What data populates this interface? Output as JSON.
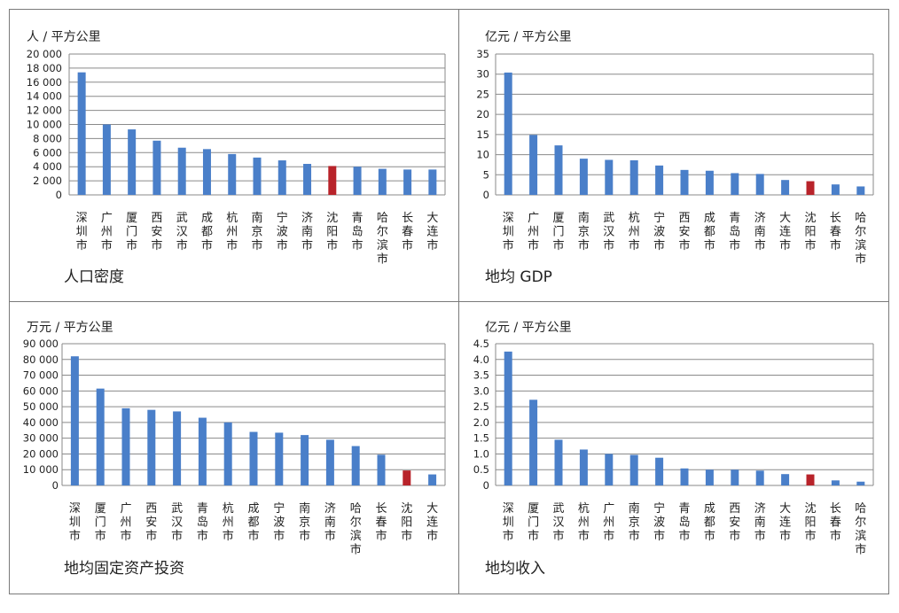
{
  "colors": {
    "bar": "#4a7fc9",
    "highlight": "#b8232a",
    "grid": "#8a8a8a",
    "frame": "#7a7a7a"
  },
  "chart_data": [
    {
      "type": "bar",
      "unit_label": "人 / 平方公里",
      "title": "人口密度",
      "ylim": [
        0,
        20000
      ],
      "yticks": [
        "20 000",
        "18 000",
        "16 000",
        "14 000",
        "12 000",
        "10 000",
        "8 000",
        "6 000",
        "4 000",
        "2 000",
        "0"
      ],
      "categories": [
        "深圳市",
        "广州市",
        "厦门市",
        "西安市",
        "武汉市",
        "成都市",
        "杭州市",
        "南京市",
        "宁波市",
        "济南市",
        "沈阳市",
        "青岛市",
        "哈尔滨市",
        "长春市",
        "大连市"
      ],
      "values": [
        17400,
        10000,
        9300,
        7700,
        6700,
        6500,
        5800,
        5300,
        4900,
        4400,
        4100,
        4000,
        3700,
        3600,
        3600
      ],
      "highlight": "沈阳市",
      "grid": true
    },
    {
      "type": "bar",
      "unit_label": "亿元 / 平方公里",
      "title": "地均 GDP",
      "ylim": [
        0,
        35
      ],
      "yticks": [
        "35",
        "30",
        "25",
        "20",
        "15",
        "10",
        "5",
        "0"
      ],
      "categories": [
        "深圳市",
        "广州市",
        "厦门市",
        "南京市",
        "武汉市",
        "杭州市",
        "宁波市",
        "西安市",
        "成都市",
        "青岛市",
        "济南市",
        "大连市",
        "沈阳市",
        "长春市",
        "哈尔滨市"
      ],
      "values": [
        30.4,
        14.9,
        12.3,
        9.0,
        8.7,
        8.6,
        7.3,
        6.2,
        6.0,
        5.4,
        5.2,
        3.7,
        3.4,
        2.6,
        2.1
      ],
      "highlight": "沈阳市",
      "grid": true
    },
    {
      "type": "bar",
      "unit_label": "万元 / 平方公里",
      "title": "地均固定资产投资",
      "ylim": [
        0,
        90000
      ],
      "yticks": [
        "90 000",
        "80 000",
        "70 000",
        "60 000",
        "50 000",
        "40 000",
        "30 000",
        "20 000",
        "10 000",
        "0"
      ],
      "categories": [
        "深圳市",
        "厦门市",
        "广州市",
        "西安市",
        "武汉市",
        "青岛市",
        "杭州市",
        "成都市",
        "宁波市",
        "南京市",
        "济南市",
        "哈尔滨市",
        "长春市",
        "沈阳市",
        "大连市"
      ],
      "values": [
        82000,
        61500,
        49000,
        48000,
        47000,
        43000,
        40000,
        34000,
        33500,
        32000,
        29000,
        25000,
        19500,
        9500,
        7000
      ],
      "highlight": "沈阳市",
      "grid": true
    },
    {
      "type": "bar",
      "unit_label": "亿元 / 平方公里",
      "title": "地均收入",
      "ylim": [
        0,
        4.5
      ],
      "yticks": [
        "4.5",
        "4.0",
        "3.5",
        "3.0",
        "2.5",
        "2.0",
        "1.5",
        "1.0",
        "0.5",
        "0"
      ],
      "categories": [
        "深圳市",
        "厦门市",
        "武汉市",
        "杭州市",
        "广州市",
        "南京市",
        "宁波市",
        "青岛市",
        "成都市",
        "西安市",
        "济南市",
        "大连市",
        "沈阳市",
        "长春市",
        "哈尔滨市"
      ],
      "values": [
        4.25,
        2.72,
        1.45,
        1.14,
        1.0,
        0.97,
        0.88,
        0.54,
        0.5,
        0.5,
        0.47,
        0.36,
        0.35,
        0.16,
        0.12
      ],
      "highlight": "沈阳市",
      "grid": true
    }
  ]
}
